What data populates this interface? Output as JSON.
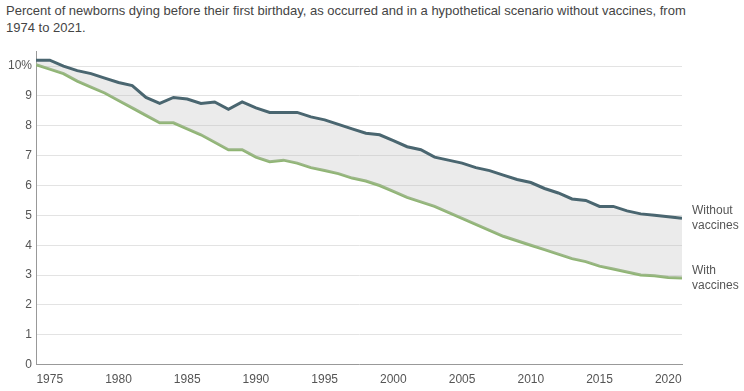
{
  "chart_data": {
    "type": "line",
    "title": "Percent of newborns dying before their first birthday, as occurred and in a hypothetical scenario without vaccines, from 1974 to 2021.",
    "x": [
      1974,
      1975,
      1976,
      1977,
      1978,
      1979,
      1980,
      1981,
      1982,
      1983,
      1984,
      1985,
      1986,
      1987,
      1988,
      1989,
      1990,
      1991,
      1992,
      1993,
      1994,
      1995,
      1996,
      1997,
      1998,
      1999,
      2000,
      2001,
      2002,
      2003,
      2004,
      2005,
      2006,
      2007,
      2008,
      2009,
      2010,
      2011,
      2012,
      2013,
      2014,
      2015,
      2016,
      2017,
      2018,
      2019,
      2020,
      2021
    ],
    "series": [
      {
        "name": "Without vaccines",
        "color": "#4a6670",
        "values": [
          10.2,
          10.2,
          10.0,
          9.85,
          9.75,
          9.6,
          9.45,
          9.35,
          8.95,
          8.75,
          8.95,
          8.9,
          8.75,
          8.8,
          8.55,
          8.8,
          8.6,
          8.45,
          8.45,
          8.45,
          8.3,
          8.2,
          8.05,
          7.9,
          7.75,
          7.7,
          7.5,
          7.3,
          7.2,
          6.95,
          6.85,
          6.75,
          6.6,
          6.5,
          6.35,
          6.2,
          6.1,
          5.9,
          5.75,
          5.55,
          5.5,
          5.3,
          5.3,
          5.15,
          5.05,
          5.0,
          4.95,
          4.9
        ]
      },
      {
        "name": "With vaccines",
        "color": "#8fb573",
        "values": [
          10.05,
          9.9,
          9.75,
          9.5,
          9.3,
          9.1,
          8.85,
          8.6,
          8.35,
          8.1,
          8.1,
          7.9,
          7.7,
          7.45,
          7.2,
          7.2,
          6.95,
          6.8,
          6.85,
          6.75,
          6.6,
          6.5,
          6.4,
          6.25,
          6.15,
          6.0,
          5.8,
          5.6,
          5.45,
          5.3,
          5.1,
          4.9,
          4.7,
          4.5,
          4.3,
          4.15,
          4.0,
          3.85,
          3.7,
          3.55,
          3.45,
          3.3,
          3.2,
          3.1,
          3.0,
          2.98,
          2.92,
          2.9
        ]
      }
    ],
    "xlim": [
      1974,
      2021
    ],
    "xticks": [
      1975,
      1980,
      1985,
      1990,
      1995,
      2000,
      2005,
      2010,
      2015,
      2020
    ],
    "ylim": [
      0,
      10.5
    ],
    "yticks": [
      0,
      1,
      2,
      3,
      4,
      5,
      6,
      7,
      8,
      9,
      {
        "value": 10,
        "label": "10%"
      }
    ],
    "grid": true
  }
}
